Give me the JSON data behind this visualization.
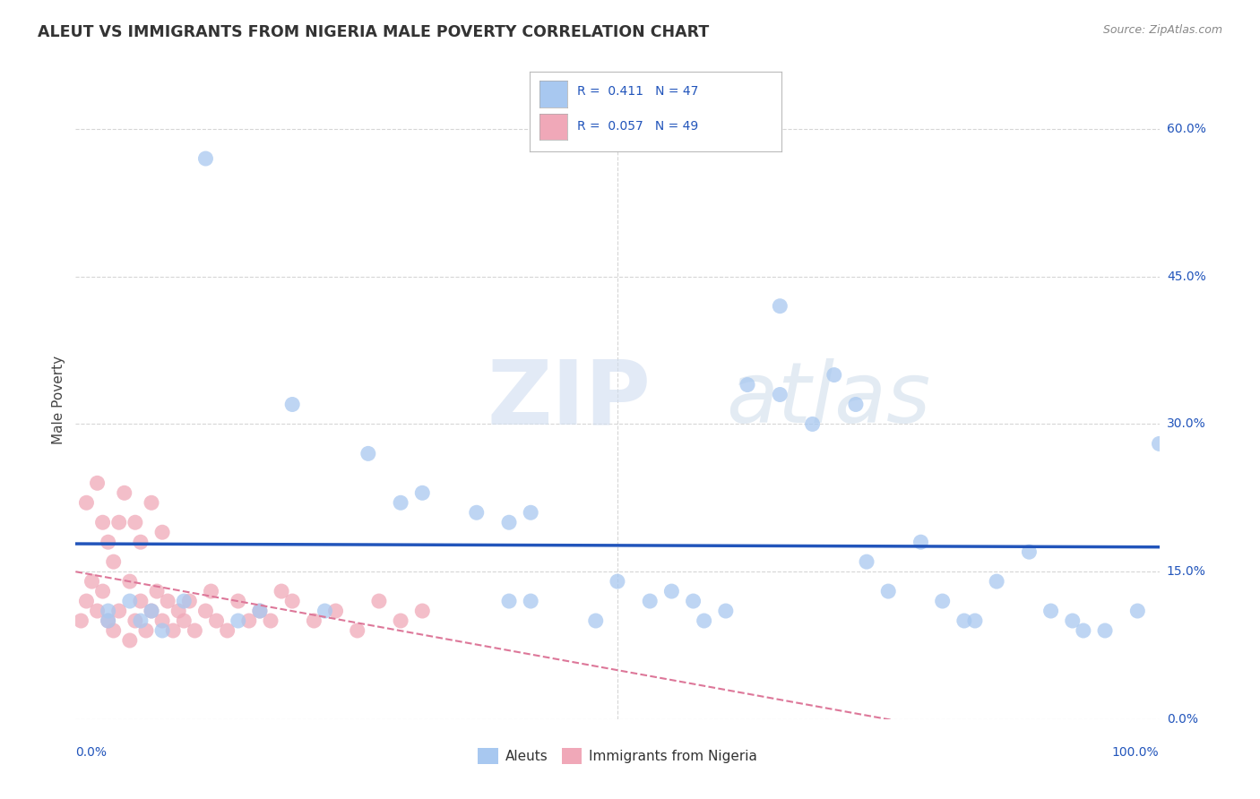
{
  "title": "ALEUT VS IMMIGRANTS FROM NIGERIA MALE POVERTY CORRELATION CHART",
  "source": "Source: ZipAtlas.com",
  "ylabel": "Male Poverty",
  "ytick_vals": [
    0.0,
    15.0,
    30.0,
    45.0,
    60.0
  ],
  "ytick_labels": [
    "0.0%",
    "15.0%",
    "30.0%",
    "45.0%",
    "60.0%"
  ],
  "xlim": [
    0,
    100
  ],
  "ylim": [
    0,
    65
  ],
  "aleut_R": "0.411",
  "aleut_N": "47",
  "nigeria_R": "0.057",
  "nigeria_N": "49",
  "aleut_color": "#a8c8f0",
  "nigeria_color": "#f0a8b8",
  "aleut_line_color": "#2255bb",
  "nigeria_line_color": "#dd7799",
  "watermark_zip": "ZIP",
  "watermark_atlas": "atlas",
  "background_color": "#ffffff",
  "grid_color": "#cccccc",
  "aleut_x": [
    3,
    3,
    5,
    6,
    7,
    8,
    10,
    12,
    15,
    17,
    20,
    23,
    27,
    30,
    32,
    37,
    40,
    42,
    48,
    50,
    53,
    55,
    58,
    60,
    62,
    65,
    68,
    70,
    72,
    75,
    78,
    80,
    82,
    85,
    88,
    90,
    92,
    95,
    98,
    100,
    40,
    42,
    57,
    65,
    73,
    83,
    93
  ],
  "aleut_y": [
    11,
    10,
    12,
    10,
    11,
    9,
    12,
    57,
    10,
    11,
    32,
    11,
    27,
    22,
    23,
    21,
    20,
    21,
    10,
    14,
    12,
    13,
    10,
    11,
    34,
    33,
    30,
    35,
    32,
    13,
    18,
    12,
    10,
    14,
    17,
    11,
    10,
    9,
    11,
    28,
    12,
    12,
    12,
    42,
    16,
    10,
    9
  ],
  "nigeria_x": [
    0.5,
    1,
    1,
    1.5,
    2,
    2,
    2.5,
    2.5,
    3,
    3,
    3.5,
    3.5,
    4,
    4,
    4.5,
    5,
    5,
    5.5,
    5.5,
    6,
    6,
    6.5,
    7,
    7,
    7.5,
    8,
    8,
    8.5,
    9,
    9.5,
    10,
    10.5,
    11,
    12,
    12.5,
    13,
    14,
    15,
    16,
    17,
    18,
    19,
    20,
    22,
    24,
    26,
    28,
    30,
    32
  ],
  "nigeria_y": [
    10,
    12,
    22,
    14,
    11,
    24,
    13,
    20,
    10,
    18,
    9,
    16,
    11,
    20,
    23,
    8,
    14,
    10,
    20,
    12,
    18,
    9,
    11,
    22,
    13,
    10,
    19,
    12,
    9,
    11,
    10,
    12,
    9,
    11,
    13,
    10,
    9,
    12,
    10,
    11,
    10,
    13,
    12,
    10,
    11,
    9,
    12,
    10,
    11
  ]
}
